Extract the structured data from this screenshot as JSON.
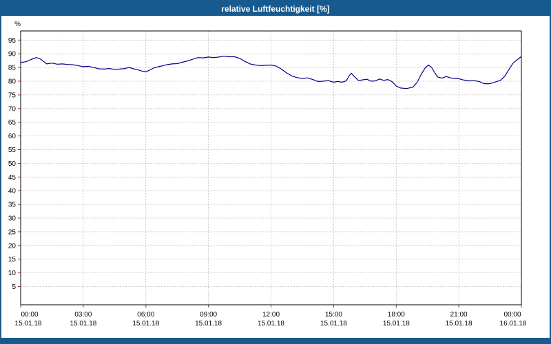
{
  "window": {
    "title": "relative Luftfeuchtigkeit [%]"
  },
  "colors": {
    "titlebar": "#175a8f",
    "line": "#00008b",
    "grid": "#c0c0c0",
    "tick": "#993333",
    "axis": "#000000",
    "label": "#000000",
    "plot_bg": "#ffffff"
  },
  "chart_data": {
    "type": "line",
    "title": "relative Luftfeuchtigkeit [%]",
    "xlabel": "",
    "ylabel": "%",
    "ylim": [
      0,
      100
    ],
    "ytick_step": 5,
    "yticks": [
      95,
      90,
      85,
      80,
      75,
      70,
      65,
      60,
      55,
      50,
      45,
      40,
      35,
      30,
      25,
      20,
      15,
      10,
      5
    ],
    "grid": "dashed",
    "legend_position": "none",
    "x_unit": "hours",
    "xticks": [
      {
        "t": 0,
        "time": "00:00",
        "date": "15.01.18"
      },
      {
        "t": 3,
        "time": "03:00",
        "date": "15.01.18"
      },
      {
        "t": 6,
        "time": "06:00",
        "date": "15.01.18"
      },
      {
        "t": 9,
        "time": "09:00",
        "date": "15.01.18"
      },
      {
        "t": 12,
        "time": "12:00",
        "date": "15.01.18"
      },
      {
        "t": 15,
        "time": "15:00",
        "date": "15.01.18"
      },
      {
        "t": 18,
        "time": "18:00",
        "date": "15.01.18"
      },
      {
        "t": 21,
        "time": "21:00",
        "date": "15.01.18"
      },
      {
        "t": 24,
        "time": "00:00",
        "date": "16.01.18"
      }
    ],
    "series": [
      {
        "name": "relative Luftfeuchtigkeit",
        "color": "#00008b",
        "points": [
          [
            0,
            86.8
          ],
          [
            0.25,
            87.1
          ],
          [
            0.5,
            87.9
          ],
          [
            0.75,
            88.6
          ],
          [
            0.9,
            88.3
          ],
          [
            1.1,
            87.2
          ],
          [
            1.25,
            86.3
          ],
          [
            1.5,
            86.6
          ],
          [
            1.75,
            86.2
          ],
          [
            2,
            86.3
          ],
          [
            2.25,
            86.1
          ],
          [
            2.5,
            86.0
          ],
          [
            2.75,
            85.7
          ],
          [
            3,
            85.3
          ],
          [
            3.25,
            85.4
          ],
          [
            3.5,
            85.0
          ],
          [
            3.75,
            84.5
          ],
          [
            4,
            84.4
          ],
          [
            4.25,
            84.6
          ],
          [
            4.5,
            84.3
          ],
          [
            4.75,
            84.4
          ],
          [
            5,
            84.6
          ],
          [
            5.2,
            85.0
          ],
          [
            5.4,
            84.5
          ],
          [
            5.6,
            84.2
          ],
          [
            5.8,
            83.7
          ],
          [
            6,
            83.4
          ],
          [
            6.2,
            84.1
          ],
          [
            6.4,
            84.9
          ],
          [
            6.6,
            85.3
          ],
          [
            6.8,
            85.6
          ],
          [
            7,
            86.0
          ],
          [
            7.25,
            86.3
          ],
          [
            7.5,
            86.4
          ],
          [
            7.75,
            86.9
          ],
          [
            8,
            87.4
          ],
          [
            8.25,
            88.0
          ],
          [
            8.5,
            88.6
          ],
          [
            8.75,
            88.5
          ],
          [
            9,
            88.8
          ],
          [
            9.25,
            88.6
          ],
          [
            9.5,
            88.8
          ],
          [
            9.75,
            89.1
          ],
          [
            10,
            88.9
          ],
          [
            10.25,
            88.9
          ],
          [
            10.5,
            88.3
          ],
          [
            10.75,
            87.2
          ],
          [
            11,
            86.3
          ],
          [
            11.25,
            85.9
          ],
          [
            11.5,
            85.7
          ],
          [
            11.75,
            85.8
          ],
          [
            12,
            85.9
          ],
          [
            12.25,
            85.5
          ],
          [
            12.5,
            84.4
          ],
          [
            12.75,
            83.0
          ],
          [
            13,
            81.9
          ],
          [
            13.25,
            81.3
          ],
          [
            13.5,
            81.0
          ],
          [
            13.75,
            81.2
          ],
          [
            14,
            80.6
          ],
          [
            14.25,
            79.9
          ],
          [
            14.5,
            80.0
          ],
          [
            14.75,
            80.2
          ],
          [
            15,
            79.6
          ],
          [
            15.2,
            79.9
          ],
          [
            15.4,
            79.6
          ],
          [
            15.6,
            80.1
          ],
          [
            15.75,
            82.0
          ],
          [
            15.85,
            82.9
          ],
          [
            16,
            81.6
          ],
          [
            16.2,
            80.2
          ],
          [
            16.4,
            80.5
          ],
          [
            16.6,
            80.7
          ],
          [
            16.8,
            80.0
          ],
          [
            17,
            80.1
          ],
          [
            17.2,
            80.8
          ],
          [
            17.4,
            80.3
          ],
          [
            17.6,
            80.6
          ],
          [
            17.8,
            79.8
          ],
          [
            18,
            78.2
          ],
          [
            18.2,
            77.5
          ],
          [
            18.5,
            77.3
          ],
          [
            18.8,
            77.8
          ],
          [
            19,
            79.5
          ],
          [
            19.2,
            82.5
          ],
          [
            19.4,
            85.0
          ],
          [
            19.55,
            85.9
          ],
          [
            19.7,
            85.0
          ],
          [
            19.85,
            83.0
          ],
          [
            20,
            81.5
          ],
          [
            20.2,
            81.1
          ],
          [
            20.4,
            81.7
          ],
          [
            20.6,
            81.2
          ],
          [
            20.8,
            81.0
          ],
          [
            21,
            80.9
          ],
          [
            21.25,
            80.4
          ],
          [
            21.5,
            80.1
          ],
          [
            21.75,
            80.2
          ],
          [
            22,
            79.8
          ],
          [
            22.2,
            79.1
          ],
          [
            22.4,
            79.0
          ],
          [
            22.6,
            79.3
          ],
          [
            22.8,
            79.8
          ],
          [
            23,
            80.3
          ],
          [
            23.2,
            81.8
          ],
          [
            23.4,
            84.2
          ],
          [
            23.6,
            86.6
          ],
          [
            23.8,
            87.8
          ],
          [
            24,
            89.0
          ]
        ]
      }
    ]
  }
}
